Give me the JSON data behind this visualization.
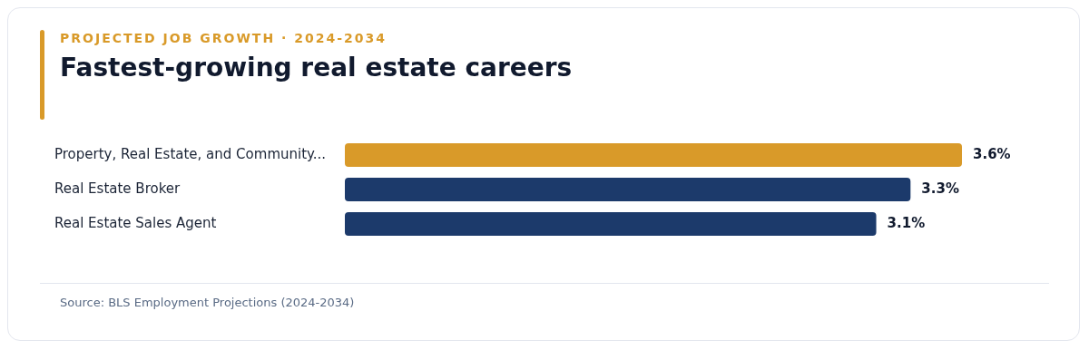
{
  "chart_data": {
    "type": "bar",
    "orientation": "horizontal",
    "subtitle": "PROJECTED JOB GROWTH · 2024-2034",
    "title": "Fastest-growing real estate careers",
    "categories": [
      "Property, Real Estate, and Community...",
      "Real Estate Broker",
      "Real Estate Sales Agent"
    ],
    "values": [
      3.6,
      3.3,
      3.1
    ],
    "colors": [
      "#d99a29",
      "#1c3a6b",
      "#1c3a6b"
    ],
    "value_labels": [
      "3.6%",
      "3.3%",
      "3.1%"
    ],
    "annotations": [
      "Source: BLS Employment Projections (2024-2034)"
    ]
  }
}
